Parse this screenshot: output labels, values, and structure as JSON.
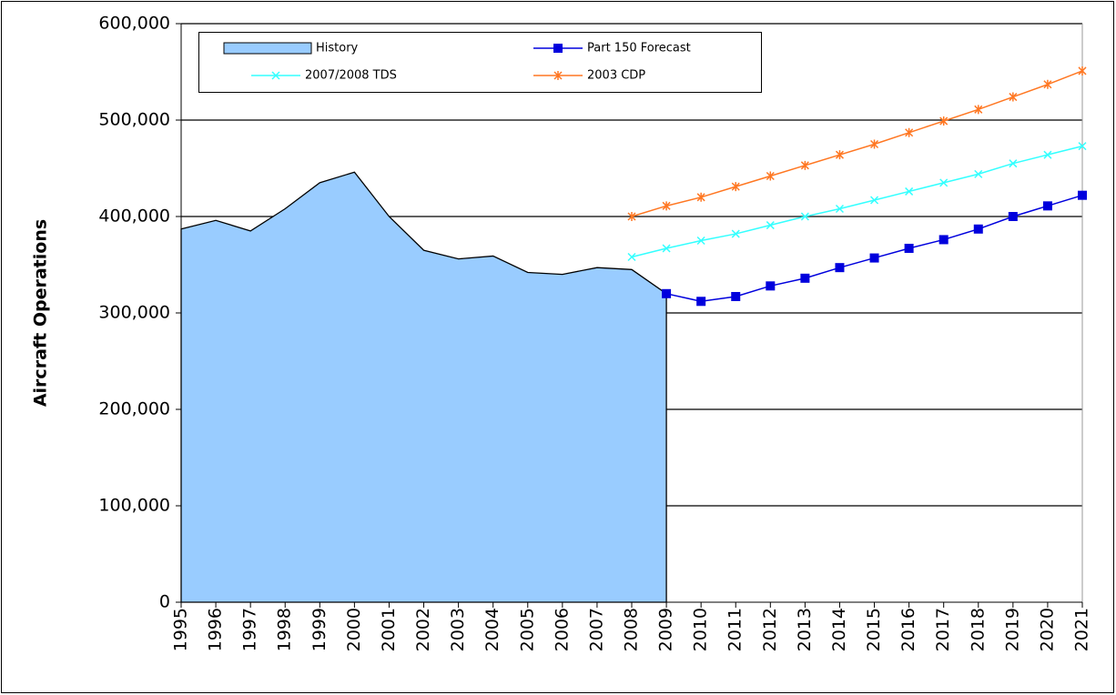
{
  "chart_data": {
    "type": "line",
    "y_label": "Aircraft Operations",
    "categories": [
      "1995",
      "1996",
      "1997",
      "1998",
      "1999",
      "2000",
      "2001",
      "2002",
      "2003",
      "2004",
      "2005",
      "2006",
      "2007",
      "2008",
      "2009",
      "2010",
      "2011",
      "2012",
      "2013",
      "2014",
      "2015",
      "2016",
      "2017",
      "2018",
      "2019",
      "2020",
      "2021"
    ],
    "series": [
      {
        "name": "History",
        "style": "area",
        "color": "#99ccff",
        "values": [
          387000,
          396000,
          385000,
          408000,
          435000,
          446000,
          400000,
          365000,
          356000,
          359000,
          342000,
          340000,
          347000,
          345000,
          320000,
          null,
          null,
          null,
          null,
          null,
          null,
          null,
          null,
          null,
          null,
          null,
          null
        ]
      },
      {
        "name": "Part 150 Forecast",
        "style": "line",
        "marker": "square",
        "color": "#0000dd",
        "values": [
          null,
          null,
          null,
          null,
          null,
          null,
          null,
          null,
          null,
          null,
          null,
          null,
          null,
          null,
          320000,
          312000,
          317000,
          328000,
          336000,
          347000,
          357000,
          367000,
          376000,
          387000,
          400000,
          411000,
          422000
        ]
      },
      {
        "name": "2007/2008 TDS",
        "style": "line",
        "marker": "x",
        "color": "#33ffff",
        "values": [
          null,
          null,
          null,
          null,
          null,
          null,
          null,
          null,
          null,
          null,
          null,
          null,
          null,
          358000,
          367000,
          375000,
          382000,
          391000,
          400000,
          408000,
          417000,
          426000,
          435000,
          444000,
          455000,
          464000,
          473000
        ]
      },
      {
        "name": "2003 CDP",
        "style": "line",
        "marker": "asterisk",
        "color": "#ff7722",
        "values": [
          null,
          null,
          null,
          null,
          null,
          null,
          null,
          null,
          null,
          null,
          null,
          null,
          null,
          400000,
          411000,
          420000,
          431000,
          442000,
          453000,
          464000,
          475000,
          487000,
          499000,
          511000,
          524000,
          537000,
          551000
        ]
      }
    ],
    "ylim": [
      0,
      600000
    ],
    "yticks": [
      0,
      {
        "value": 100000,
        "label": "100,000"
      },
      {
        "value": 200000,
        "label": "200,000"
      },
      {
        "value": 300000,
        "label": "300,000"
      },
      {
        "value": 400000,
        "label": "400,000"
      },
      {
        "value": 500000,
        "label": "500,000"
      },
      {
        "value": 600000,
        "label": "600,000"
      }
    ],
    "grid": true
  }
}
